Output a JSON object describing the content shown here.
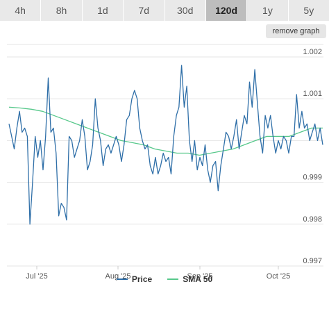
{
  "tabs": [
    {
      "label": "4h",
      "active": false
    },
    {
      "label": "8h",
      "active": false
    },
    {
      "label": "1d",
      "active": false
    },
    {
      "label": "7d",
      "active": false
    },
    {
      "label": "30d",
      "active": false
    },
    {
      "label": "120d",
      "active": true
    },
    {
      "label": "1y",
      "active": false
    },
    {
      "label": "5y",
      "active": false
    }
  ],
  "remove_graph_label": "remove graph",
  "colors": {
    "price": "#2f6fa8",
    "sma": "#57c88b",
    "grid": "#e6e6e6"
  },
  "chart_data": {
    "type": "line",
    "x_tick_labels": [
      "Jul '25",
      "Aug '25",
      "Sep '25",
      "Oct '25"
    ],
    "y_tick_labels": [
      "0.997",
      "0.998",
      "0.999",
      "1.001",
      "1.002"
    ],
    "ylim": [
      0.997,
      1.0023
    ],
    "grid": true,
    "legend_position": "bottom",
    "series": [
      {
        "name": "Price",
        "values": [
          1.0004,
          1.0001,
          0.9998,
          1.0003,
          1.0007,
          1.0002,
          1.0003,
          1.0001,
          0.998,
          0.999,
          1.0001,
          0.9996,
          1.0,
          0.9993,
          1.0001,
          1.0015,
          1.0002,
          1.0003,
          0.9997,
          0.9982,
          0.9985,
          0.9984,
          0.9981,
          1.0001,
          1.0,
          0.9996,
          0.9998,
          1.0,
          1.0005,
          1.0001,
          0.9993,
          0.9995,
          0.9999,
          1.001,
          1.0003,
          1.0,
          0.9994,
          0.9998,
          0.9999,
          0.9997,
          0.9999,
          1.0001,
          0.9999,
          0.9995,
          0.9999,
          1.0005,
          1.0006,
          1.001,
          1.0012,
          1.001,
          1.0003,
          1.0,
          0.9998,
          0.9999,
          0.9994,
          0.9992,
          0.9996,
          0.9992,
          0.9994,
          0.9997,
          0.9995,
          0.9996,
          0.9992,
          1.0001,
          1.0006,
          1.0008,
          1.0018,
          1.0008,
          1.0013,
          1.0,
          0.9995,
          1.0,
          0.9993,
          0.9996,
          0.9994,
          0.9999,
          0.9993,
          0.999,
          0.9994,
          0.9995,
          0.9988,
          0.9994,
          0.9998,
          1.0002,
          1.0001,
          0.9998,
          1.0001,
          1.0005,
          0.9998,
          1.0002,
          1.0006,
          1.0004,
          1.0014,
          1.0008,
          1.0017,
          1.0009,
          1.0001,
          0.9997,
          1.0006,
          1.0003,
          1.0006,
          1.0001,
          0.9997,
          1.0,
          0.9998,
          1.0001,
          1.0,
          0.9997,
          1.0001,
          1.0001,
          1.0011,
          1.0003,
          1.0007,
          1.0003,
          1.0004,
          1.0,
          1.0002,
          1.0004,
          1.0,
          1.0003,
          0.9999
        ]
      },
      {
        "name": "SMA 50",
        "values": [
          1.0008,
          1.00078,
          1.00075,
          1.0007,
          1.0006,
          1.0005,
          1.0004,
          1.0003,
          1.0002,
          1.0001,
          1.0,
          0.99995,
          0.9999,
          0.9998,
          0.99975,
          0.9997,
          0.9997,
          0.99965,
          0.9997,
          0.99975,
          0.9998,
          0.9999,
          1.0,
          1.0001,
          1.0001,
          1.0001,
          1.0002,
          1.0003,
          1.0003
        ]
      }
    ]
  }
}
